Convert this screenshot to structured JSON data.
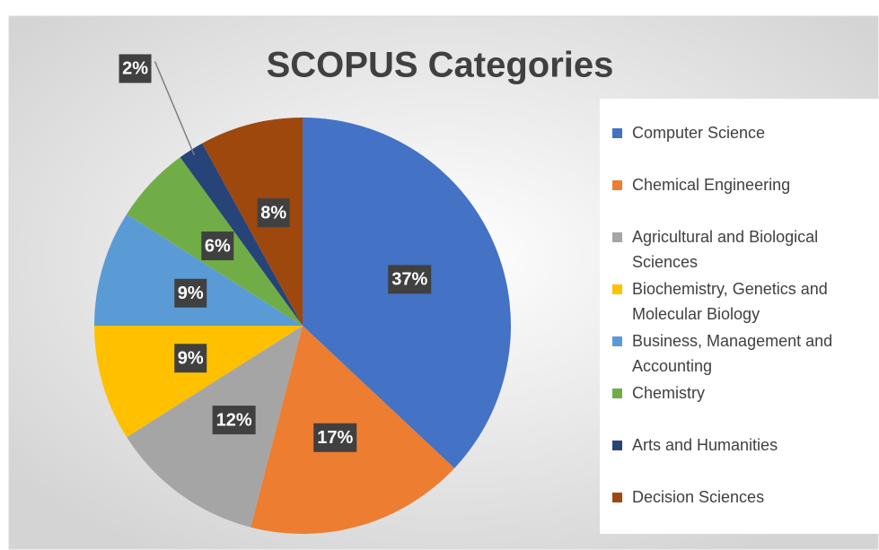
{
  "chart_data": {
    "type": "pie",
    "title": "SCOPUS Categories",
    "categories": [
      "Computer Science",
      "Chemical Engineering",
      "Agricultural and Biological Sciences",
      "Biochemistry, Genetics and Molecular Biology",
      "Business, Management and Accounting",
      "Chemistry",
      "Arts and Humanities",
      "Decision Sciences"
    ],
    "values": [
      37,
      17,
      12,
      9,
      9,
      6,
      2,
      8
    ],
    "value_labels": [
      "37%",
      "17%",
      "12%",
      "9%",
      "9%",
      "6%",
      "2%",
      "8%"
    ],
    "colors": [
      "#4472c4",
      "#ed7d31",
      "#a5a5a5",
      "#ffc000",
      "#5b9bd5",
      "#70ad47",
      "#264478",
      "#9e480e"
    ],
    "legend": "right"
  }
}
